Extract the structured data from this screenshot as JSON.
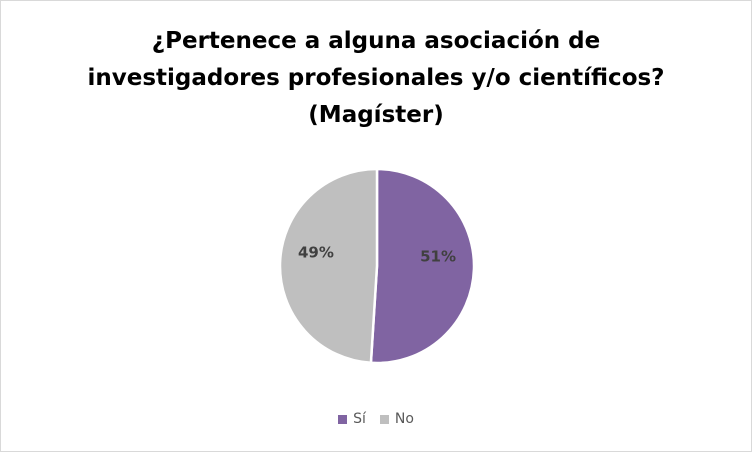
{
  "chart_data": {
    "type": "pie",
    "title_lines": [
      "¿Pertenece a alguna asociación de",
      "investigadores profesionales y/o científicos?",
      "(Magíster)"
    ],
    "categories": [
      "Sí",
      "No"
    ],
    "values": [
      51,
      49
    ],
    "value_labels": [
      "51%",
      "49%"
    ],
    "colors": [
      "#8064A2",
      "#BFBFBF"
    ],
    "legend_position": "bottom"
  }
}
